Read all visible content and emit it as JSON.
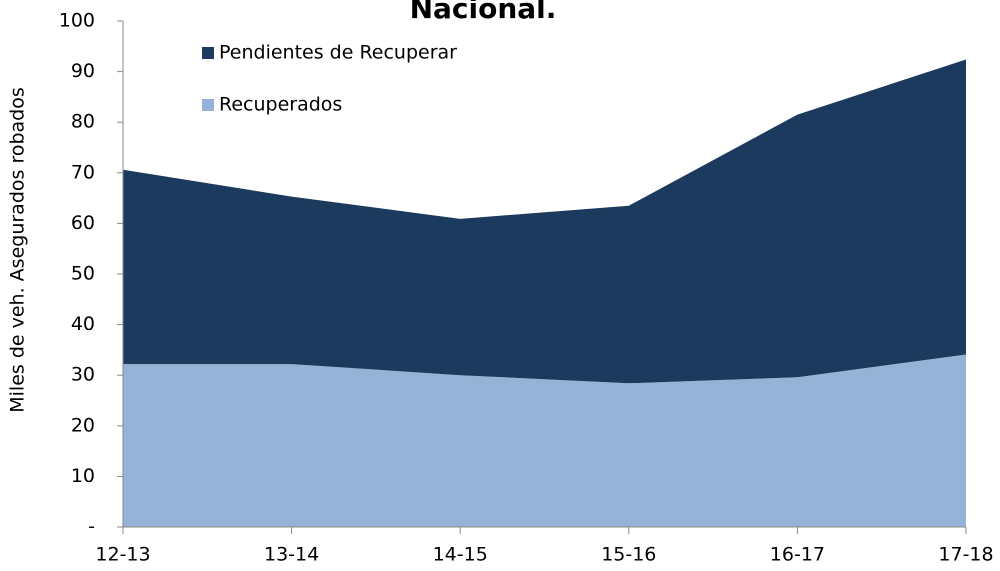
{
  "chart_data": {
    "type": "stacked_area",
    "title": "Nacional.",
    "y_label": "Miles de veh. Asegurados robados",
    "categories": [
      "12-13",
      "13-14",
      "14-15",
      "15-16",
      "16-17",
      "17-18"
    ],
    "series": [
      {
        "name": "Recuperados",
        "color": "#95b3d7",
        "values": [
          32.2,
          32.2,
          30.0,
          28.4,
          29.6,
          34.1
        ]
      },
      {
        "name": "Pendientes de Recuperar",
        "color": "#1b3a5e",
        "values": [
          38.4,
          33.1,
          30.9,
          35.1,
          51.9,
          58.3
        ]
      }
    ],
    "ylim": [
      0,
      100
    ],
    "yticks": [
      {
        "value": 0,
        "label": "-"
      },
      10,
      20,
      30,
      40,
      50,
      60,
      70,
      80,
      90,
      100
    ],
    "legend": "top-left"
  }
}
